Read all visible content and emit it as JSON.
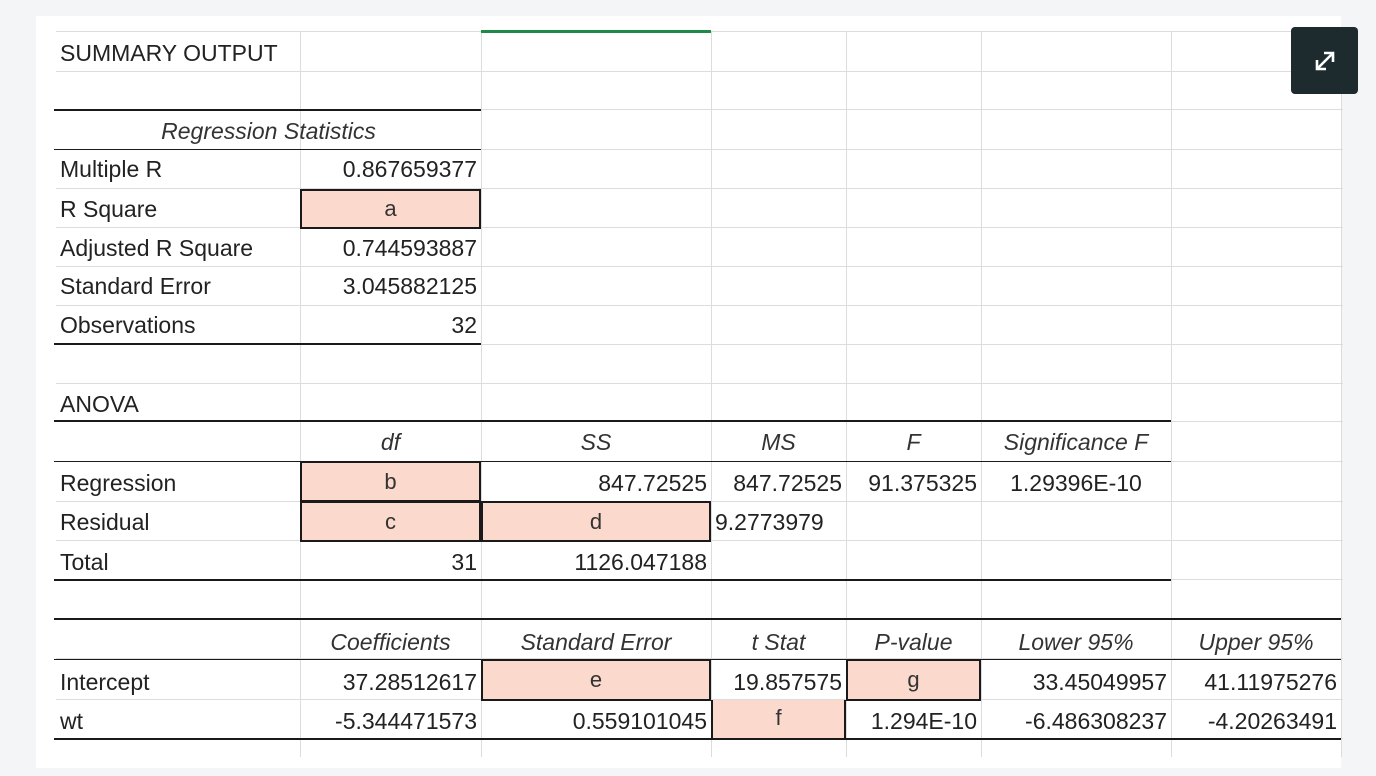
{
  "summary_title": "SUMMARY OUTPUT",
  "regression_statistics": {
    "header": "Regression Statistics",
    "rows": [
      {
        "label": "Multiple R",
        "value": "0.867659377"
      },
      {
        "label": "R Square",
        "value": "a"
      },
      {
        "label": "Adjusted R Square",
        "value": "0.744593887"
      },
      {
        "label": "Standard Error",
        "value": "3.045882125"
      },
      {
        "label": "Observations",
        "value": "32"
      }
    ]
  },
  "anova": {
    "title": "ANOVA",
    "headers": [
      "df",
      "SS",
      "MS",
      "F",
      "Significance F"
    ],
    "rows": [
      {
        "label": "Regression",
        "df": "b",
        "ss": "847.72525",
        "ms": "847.72525",
        "f": "91.375325",
        "sig_f": "1.29396E-10"
      },
      {
        "label": "Residual",
        "df": "c",
        "ss": "d",
        "ms": "9.2773979",
        "f": "",
        "sig_f": ""
      },
      {
        "label": "Total",
        "df": "31",
        "ss": "1126.047188",
        "ms": "",
        "f": "",
        "sig_f": ""
      }
    ]
  },
  "coefficients": {
    "headers": [
      "Coefficients",
      "Standard Error",
      "t Stat",
      "P-value",
      "Lower 95%",
      "Upper 95%"
    ],
    "rows": [
      {
        "label": "Intercept",
        "coef": "37.28512617",
        "se": "e",
        "t": "19.857575",
        "p": "g",
        "lower": "33.45049957",
        "upper": "41.11975276"
      },
      {
        "label": "wt",
        "coef": "-5.344471573",
        "se": "0.559101045",
        "t": "f",
        "p": "1.294E-10",
        "lower": "-6.486308237",
        "upper": "-4.20263491"
      }
    ]
  },
  "icons": {
    "expand": "expand-icon"
  },
  "colors": {
    "highlight": "#fbdacd",
    "active_column": "#1e8a4a",
    "expand_button": "#1d2b2e"
  }
}
